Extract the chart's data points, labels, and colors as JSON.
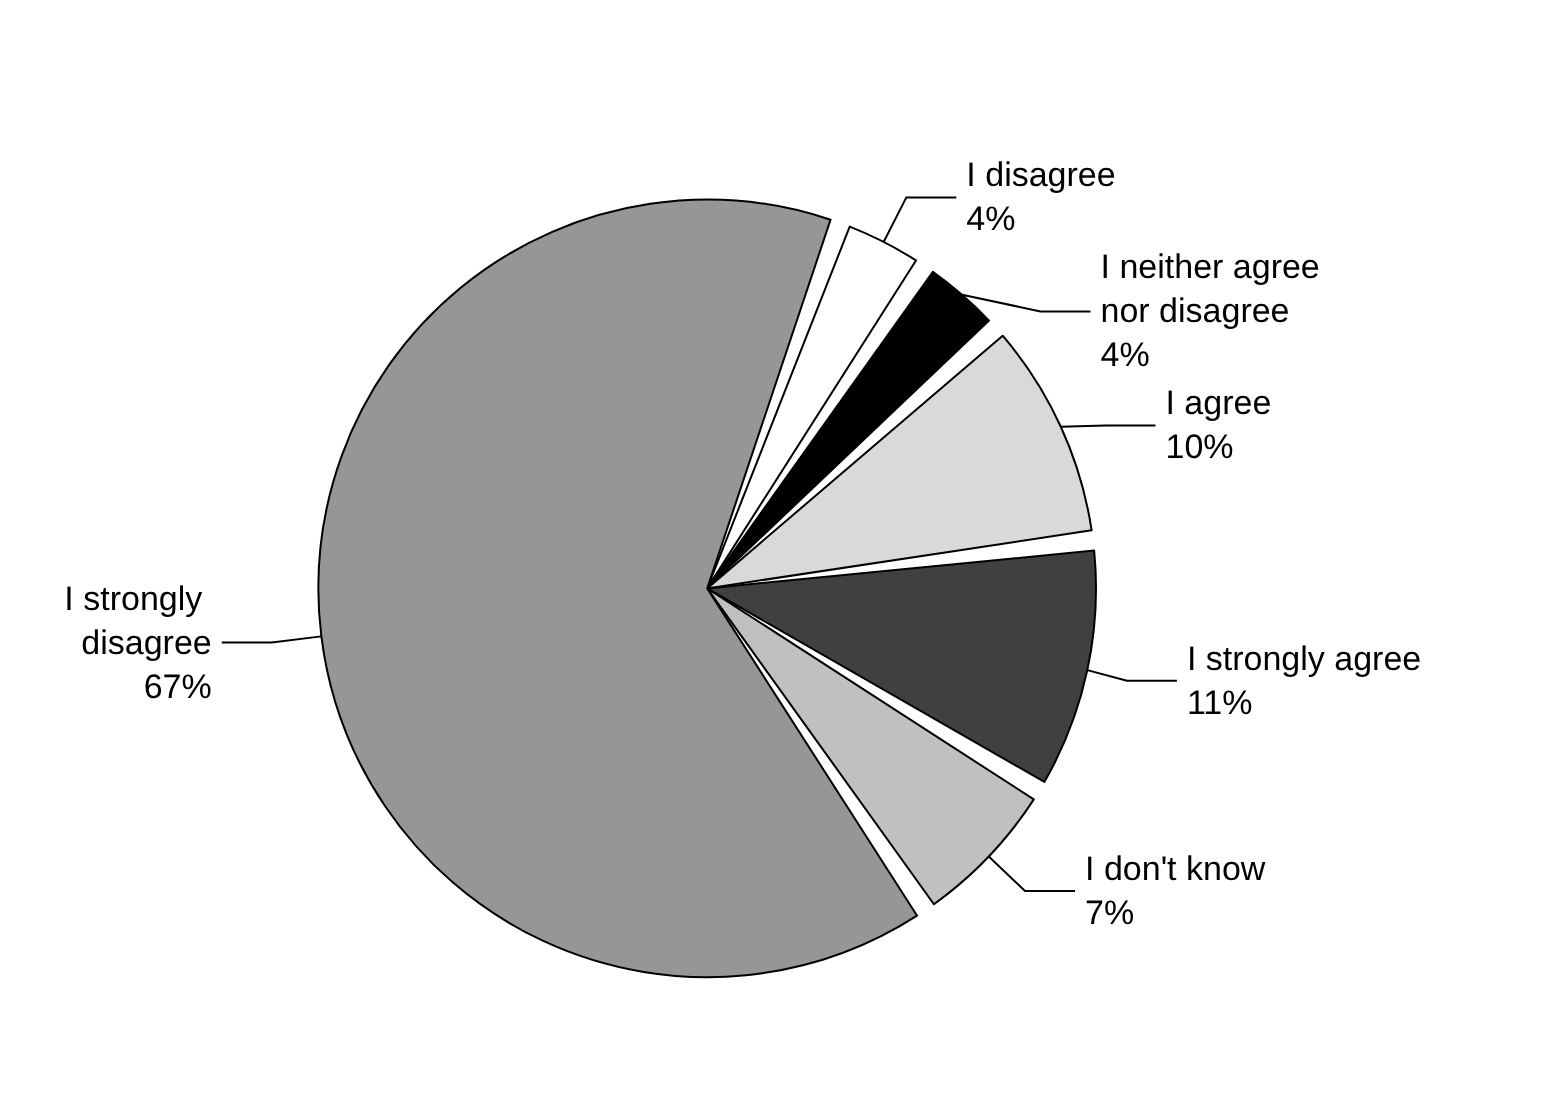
{
  "chart_data": {
    "type": "pie",
    "categories": [
      "I disagree",
      "I neither agree nor disagree",
      "I agree",
      "I strongly agree",
      "I don't know",
      "I strongly disagree"
    ],
    "values": [
      4,
      4,
      10,
      11,
      7,
      67
    ],
    "colors": [
      "#ffffff",
      "#000000",
      "#d9d9d9",
      "#404040",
      "#c0c0c0",
      "#969696"
    ],
    "value_labels": [
      "4%",
      "4%",
      "10%",
      "11%",
      "7%",
      "67%"
    ],
    "legend": false
  }
}
